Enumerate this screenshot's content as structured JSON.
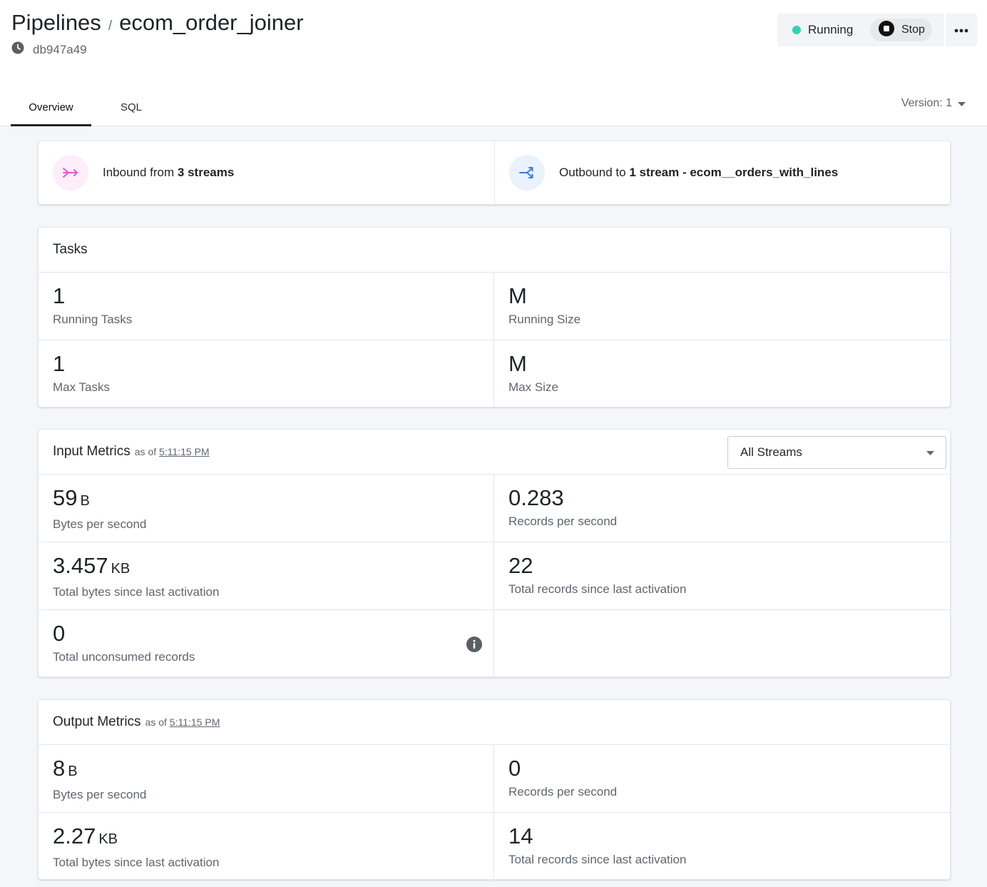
{
  "breadcrumb": {
    "root": "Pipelines",
    "separator": "/",
    "name": "ecom_order_joiner"
  },
  "commit": {
    "id": "db947a49",
    "icon": "clock-icon"
  },
  "actions": {
    "status": "Running",
    "status_color": "#2fd3b2",
    "stop_label": "Stop",
    "more_icon": "more-horizontal-icon"
  },
  "tabs": [
    {
      "label": "Overview",
      "active": true
    },
    {
      "label": "SQL",
      "active": false
    }
  ],
  "version": {
    "label": "Version: 1"
  },
  "flow": {
    "inbound": {
      "prefix": "Inbound from ",
      "count": "3 streams",
      "icon": "merge-arrow-icon",
      "color": "#e05ad6"
    },
    "outbound": {
      "prefix": "Outbound to ",
      "target": "1 stream - ecom__orders_with_lines",
      "icon": "split-arrow-icon",
      "color": "#3b7dd8"
    }
  },
  "tasks": {
    "title": "Tasks",
    "metrics": [
      {
        "value": "1",
        "unit": "",
        "label": "Running Tasks"
      },
      {
        "value": "M",
        "unit": "",
        "label": "Running Size"
      },
      {
        "value": "1",
        "unit": "",
        "label": "Max Tasks"
      },
      {
        "value": "M",
        "unit": "",
        "label": "Max Size"
      }
    ]
  },
  "input_metrics": {
    "title": "Input Metrics",
    "as_of": "as of",
    "time": "5:11:15 PM",
    "stream_filter": "All Streams",
    "metrics": [
      {
        "value": "59",
        "unit": "B",
        "label": "Bytes per second"
      },
      {
        "value": "0.283",
        "unit": "",
        "label": "Records per second"
      },
      {
        "value": "3.457",
        "unit": "KB",
        "label": "Total bytes since last activation"
      },
      {
        "value": "22",
        "unit": "",
        "label": "Total records since last activation"
      },
      {
        "value": "0",
        "unit": "",
        "label": "Total unconsumed records",
        "icon": "info-icon"
      }
    ]
  },
  "output_metrics": {
    "title": "Output Metrics",
    "as_of": "as of",
    "time": "5:11:15 PM",
    "metrics": [
      {
        "value": "8",
        "unit": "B",
        "label": "Bytes per second"
      },
      {
        "value": "0",
        "unit": "",
        "label": "Records per second"
      },
      {
        "value": "2.27",
        "unit": "KB",
        "label": "Total bytes since last activation"
      },
      {
        "value": "14",
        "unit": "",
        "label": "Total records since last activation"
      }
    ]
  }
}
